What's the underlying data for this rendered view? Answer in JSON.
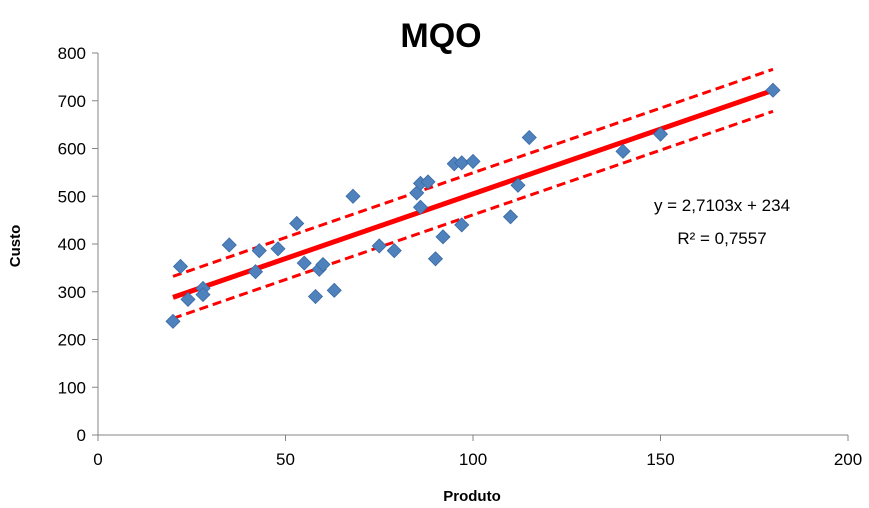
{
  "chart_data": {
    "type": "scatter",
    "title": "MQO",
    "xlabel": "Produto",
    "ylabel": "Custo",
    "xlim": [
      0,
      200
    ],
    "ylim": [
      0,
      800
    ],
    "xticks": [
      "0",
      "50",
      "100",
      "150",
      "200"
    ],
    "yticks": [
      "0",
      "100",
      "200",
      "300",
      "400",
      "500",
      "600",
      "700",
      "800"
    ],
    "grid": false,
    "legend": "none",
    "colors": {
      "points": "#4F81BD",
      "fit_line": "#FF0000",
      "bands": "#FF0000"
    },
    "points": [
      [
        20,
        238
      ],
      [
        22,
        353
      ],
      [
        24,
        284
      ],
      [
        28,
        307
      ],
      [
        28,
        294
      ],
      [
        35,
        398
      ],
      [
        42,
        342
      ],
      [
        43,
        386
      ],
      [
        48,
        390
      ],
      [
        53,
        443
      ],
      [
        55,
        360
      ],
      [
        58,
        290
      ],
      [
        59,
        347
      ],
      [
        60,
        357
      ],
      [
        63,
        303
      ],
      [
        68,
        500
      ],
      [
        75,
        396
      ],
      [
        79,
        386
      ],
      [
        85,
        507
      ],
      [
        86,
        527
      ],
      [
        86,
        477
      ],
      [
        88,
        530
      ],
      [
        90,
        369
      ],
      [
        92,
        415
      ],
      [
        95,
        568
      ],
      [
        97,
        570
      ],
      [
        97,
        440
      ],
      [
        100,
        573
      ],
      [
        110,
        457
      ],
      [
        112,
        523
      ],
      [
        115,
        623
      ],
      [
        140,
        594
      ],
      [
        150,
        630
      ],
      [
        180,
        722
      ]
    ],
    "fit": {
      "slope": 2.7103,
      "intercept": 234,
      "x_range": [
        20,
        180
      ]
    },
    "bands": [
      {
        "intercept_offset": 44,
        "style": "dashed"
      },
      {
        "intercept_offset": -44,
        "style": "dashed"
      }
    ],
    "annotations": [
      "y = 2,7103x + 234",
      "R² = 0,7557"
    ]
  }
}
